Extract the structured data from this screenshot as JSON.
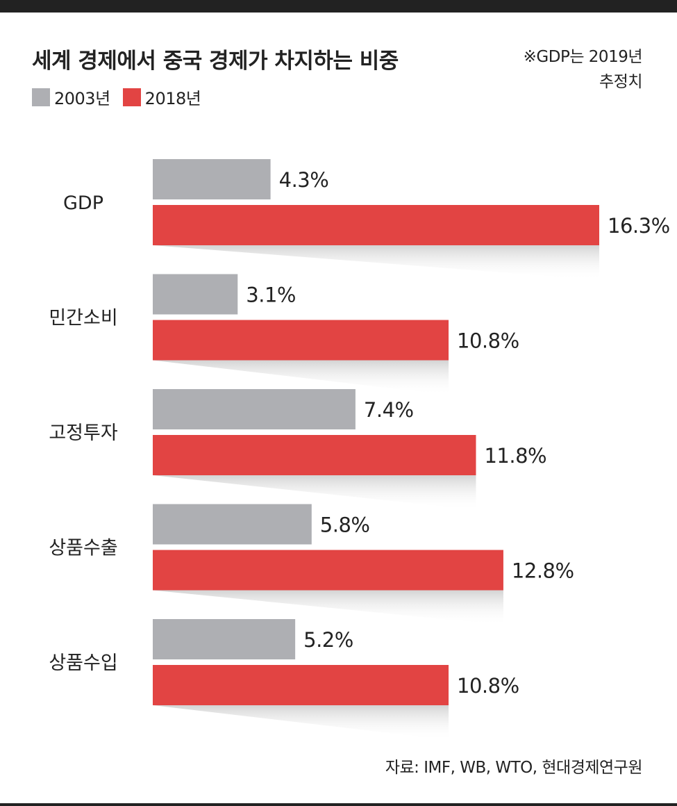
{
  "title": "세계 경제에서 중국 경제가 차지하는 비중",
  "note": {
    "line1": "※GDP는 2019년",
    "line2": "추정치"
  },
  "source": "자료: IMF, WB, WTO, 현대경제연구원",
  "colors": {
    "series_2003": "#aeafb3",
    "series_2018": "#e24443",
    "text": "#222222",
    "shadow": "#d4d4d4"
  },
  "chart_data": {
    "type": "bar",
    "orientation": "horizontal",
    "title": "세계 경제에서 중국 경제가 차지하는 비중",
    "categories": [
      "GDP",
      "민간소비",
      "고정투자",
      "상품수출",
      "상품수입"
    ],
    "series": [
      {
        "name": "2003년",
        "values": [
          4.3,
          3.1,
          7.4,
          5.8,
          5.2
        ],
        "labels": [
          "4.3%",
          "3.1%",
          "7.4%",
          "5.8%",
          "5.2%"
        ]
      },
      {
        "name": "2018년",
        "values": [
          16.3,
          10.8,
          11.8,
          12.8,
          10.8
        ],
        "labels": [
          "16.3%",
          "10.8%",
          "11.8%",
          "12.8%",
          "10.8%"
        ]
      }
    ],
    "unit": "%",
    "xlim": [
      0,
      16.3
    ],
    "grid": false,
    "legend": "top-left"
  }
}
